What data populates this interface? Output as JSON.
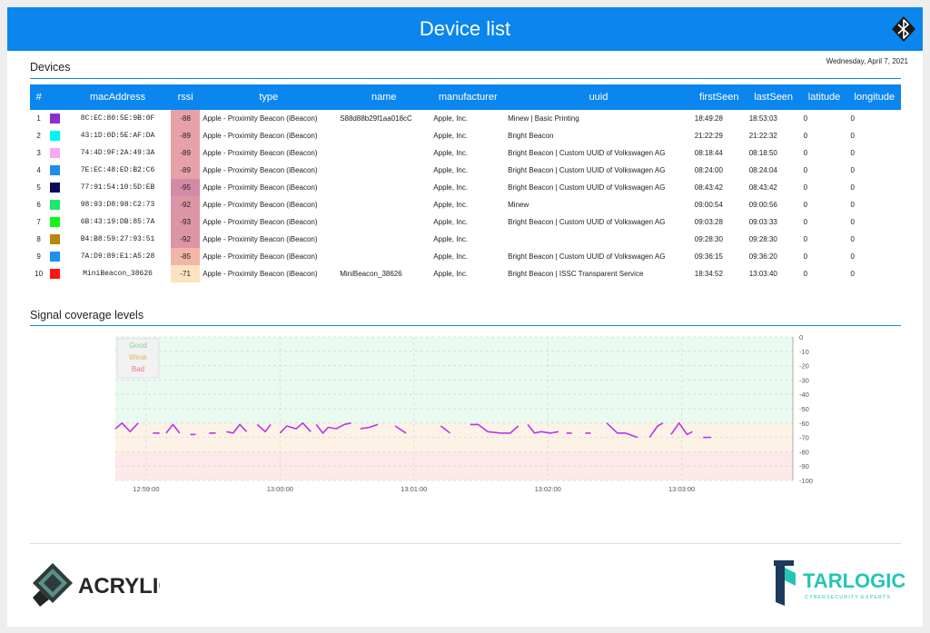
{
  "header": {
    "title": "Device list"
  },
  "devices": {
    "title": "Devices",
    "date": "Wednesday, April 7, 2021",
    "columns": [
      "#",
      "macAddress",
      "rssi",
      "type",
      "name",
      "manufacturer",
      "uuid",
      "firstSeen",
      "lastSeen",
      "latitude",
      "longitude"
    ],
    "rows": [
      {
        "n": "1",
        "color": "#8b2fd4",
        "mac": "8C:EC:80:5E:9B:0F",
        "rssi": "-88",
        "rssi_color": "#e9a1a8",
        "type": "Apple - Proximity Beacon (iBeacon)",
        "name": "S88d88b29f1aa018cC",
        "manufacturer": "Apple, Inc.",
        "uuid": "Minew | Basic Printing",
        "first": "18:49:28",
        "last": "18:53:03",
        "lat": "0",
        "lon": "0"
      },
      {
        "n": "2",
        "color": "#00f5f5",
        "mac": "43:1D:0D:5E:AF:DA",
        "rssi": "-89",
        "rssi_color": "#e9a1a8",
        "type": "Apple - Proximity Beacon (iBeacon)",
        "name": "",
        "manufacturer": "Apple, Inc.",
        "uuid": "Bright Beacon",
        "first": "21:22:29",
        "last": "21:22:32",
        "lat": "0",
        "lon": "0"
      },
      {
        "n": "3",
        "color": "#f7a8f0",
        "mac": "74:4D:9F:2A:49:3A",
        "rssi": "-89",
        "rssi_color": "#e9a1a8",
        "type": "Apple - Proximity Beacon (iBeacon)",
        "name": "",
        "manufacturer": "Apple, Inc.",
        "uuid": "Bright Beacon | Custom UUID of Volkswagen AG",
        "first": "08:18:44",
        "last": "08:18:50",
        "lat": "0",
        "lon": "0"
      },
      {
        "n": "4",
        "color": "#1e8bf0",
        "mac": "7E:EC:48:ED:B2:C6",
        "rssi": "-89",
        "rssi_color": "#e9a1a8",
        "type": "Apple - Proximity Beacon (iBeacon)",
        "name": "",
        "manufacturer": "Apple, Inc.",
        "uuid": "Bright Beacon | Custom UUID of Volkswagen AG",
        "first": "08:24:00",
        "last": "08:24:04",
        "lat": "0",
        "lon": "0"
      },
      {
        "n": "5",
        "color": "#0a0a5a",
        "mac": "77:91:54:10:5D:EB",
        "rssi": "-95",
        "rssi_color": "#d28aa8",
        "type": "Apple - Proximity Beacon (iBeacon)",
        "name": "",
        "manufacturer": "Apple, Inc.",
        "uuid": "Bright Beacon | Custom UUID of Volkswagen AG",
        "first": "08:43:42",
        "last": "08:43:42",
        "lat": "0",
        "lon": "0"
      },
      {
        "n": "6",
        "color": "#17ea6f",
        "mac": "98:93:D8:98:C2:73",
        "rssi": "-92",
        "rssi_color": "#dc95a5",
        "type": "Apple - Proximity Beacon (iBeacon)",
        "name": "",
        "manufacturer": "Apple, Inc.",
        "uuid": "Minew",
        "first": "09:00:54",
        "last": "09:00:56",
        "lat": "0",
        "lon": "0"
      },
      {
        "n": "7",
        "color": "#14f514",
        "mac": "6B:43:19:DB:85:7A",
        "rssi": "-93",
        "rssi_color": "#dc95a5",
        "type": "Apple - Proximity Beacon (iBeacon)",
        "name": "",
        "manufacturer": "Apple, Inc.",
        "uuid": "Bright Beacon | Custom UUID of Volkswagen AG",
        "first": "09:03:28",
        "last": "09:03:33",
        "lat": "0",
        "lon": "0"
      },
      {
        "n": "8",
        "color": "#b8860b",
        "mac": "B4:B8:59:27:93:51",
        "rssi": "-92",
        "rssi_color": "#dc95a5",
        "type": "Apple - Proximity Beacon (iBeacon)",
        "name": "",
        "manufacturer": "Apple, Inc.",
        "uuid": "",
        "first": "09:28:30",
        "last": "09:28:30",
        "lat": "0",
        "lon": "0"
      },
      {
        "n": "9",
        "color": "#1e90f0",
        "mac": "7A:D9:89:E1:A5:28",
        "rssi": "-85",
        "rssi_color": "#f2b5a8",
        "type": "Apple - Proximity Beacon (iBeacon)",
        "name": "",
        "manufacturer": "Apple, Inc.",
        "uuid": "Bright Beacon | Custom UUID of Volkswagen AG",
        "first": "09:36:15",
        "last": "09:36:20",
        "lat": "0",
        "lon": "0"
      },
      {
        "n": "10",
        "color": "#ff1414",
        "mac": "MiniBeacon_38626",
        "rssi": "-71",
        "rssi_color": "#fbe3bf",
        "type": "Apple - Proximity Beacon (iBeacon)",
        "name": "MiniBeacon_38626",
        "manufacturer": "Apple, Inc.",
        "uuid": "Bright Beacon | ISSC Transparent Service",
        "first": "18:34:52",
        "last": "13:03:40",
        "lat": "0",
        "lon": "0"
      }
    ]
  },
  "signal": {
    "title": "Signal coverage levels",
    "legend": [
      {
        "label": "Good",
        "color": "#7fd08f"
      },
      {
        "label": "Weak",
        "color": "#e4b866"
      },
      {
        "label": "Bad",
        "color": "#e67a7a"
      }
    ]
  },
  "chart_data": {
    "type": "line",
    "title": "Signal coverage levels",
    "x_ticks": [
      "12:59:00",
      "13:00:00",
      "13:01:00",
      "13:02:00",
      "13:03:00"
    ],
    "x_tick_minutes": [
      0,
      1,
      2,
      3,
      4
    ],
    "xlim_minutes": [
      -0.23,
      4.83
    ],
    "ylim": [
      -100,
      0
    ],
    "y_ticks": [
      0,
      -10,
      -20,
      -30,
      -40,
      -50,
      -60,
      -70,
      -80,
      -90,
      -100
    ],
    "bands": [
      {
        "label": "Good",
        "from": 0,
        "to": -60,
        "color": "#e9faf0"
      },
      {
        "label": "Weak",
        "from": -60,
        "to": -80,
        "color": "#fdf2e6"
      },
      {
        "label": "Bad",
        "from": -80,
        "to": -100,
        "color": "#fde9e9"
      }
    ],
    "grid": true,
    "legend_position": "top-left",
    "series": [
      {
        "color": "#b437e8",
        "segments": [
          [
            [
              -0.23,
              -64
            ],
            [
              -0.18,
              -60
            ],
            [
              -0.12,
              -66
            ],
            [
              -0.06,
              -60
            ]
          ],
          [
            [
              0.05,
              -67
            ],
            [
              0.1,
              -67
            ]
          ],
          [
            [
              0.15,
              -67
            ],
            [
              0.2,
              -61
            ],
            [
              0.25,
              -67
            ]
          ],
          [
            [
              0.33,
              -68
            ],
            [
              0.37,
              -68
            ]
          ],
          [
            [
              0.47,
              -67
            ],
            [
              0.52,
              -67
            ]
          ],
          [
            [
              0.6,
              -66
            ],
            [
              0.65,
              -67
            ],
            [
              0.7,
              -61
            ],
            [
              0.75,
              -66
            ]
          ],
          [
            [
              0.83,
              -61
            ],
            [
              0.89,
              -66
            ],
            [
              0.93,
              -61
            ]
          ],
          [
            [
              1.0,
              -67
            ],
            [
              1.05,
              -62
            ],
            [
              1.12,
              -64
            ],
            [
              1.17,
              -60
            ],
            [
              1.23,
              -66
            ]
          ],
          [
            [
              1.27,
              -61
            ],
            [
              1.32,
              -67
            ],
            [
              1.36,
              -63
            ],
            [
              1.42,
              -64
            ],
            [
              1.48,
              -61
            ],
            [
              1.53,
              -60
            ]
          ],
          [
            [
              1.6,
              -64
            ],
            [
              1.67,
              -63
            ],
            [
              1.73,
              -61
            ]
          ],
          [
            [
              1.86,
              -62
            ],
            [
              1.94,
              -67
            ]
          ],
          [
            [
              2.2,
              -62
            ],
            [
              2.27,
              -67
            ]
          ],
          [
            [
              2.42,
              -61
            ],
            [
              2.48,
              -61
            ],
            [
              2.55,
              -66
            ],
            [
              2.65,
              -67
            ],
            [
              2.72,
              -67
            ],
            [
              2.78,
              -62
            ]
          ],
          [
            [
              2.85,
              -61
            ],
            [
              2.9,
              -67
            ],
            [
              2.95,
              -66
            ],
            [
              3.02,
              -67
            ],
            [
              3.08,
              -66
            ]
          ],
          [
            [
              3.14,
              -67
            ],
            [
              3.18,
              -67
            ]
          ],
          [
            [
              3.28,
              -67
            ],
            [
              3.32,
              -67
            ]
          ],
          [
            [
              3.44,
              -60
            ],
            [
              3.52,
              -67
            ],
            [
              3.58,
              -67
            ],
            [
              3.67,
              -70
            ]
          ],
          [
            [
              3.76,
              -70
            ],
            [
              3.82,
              -62
            ],
            [
              3.86,
              -60
            ]
          ],
          [
            [
              3.92,
              -68
            ],
            [
              3.98,
              -60
            ],
            [
              4.04,
              -68
            ],
            [
              4.08,
              -66
            ]
          ],
          [
            [
              4.16,
              -70
            ],
            [
              4.22,
              -70
            ]
          ]
        ]
      }
    ]
  },
  "footer": {
    "acrylic_logo": "ACRYLIC",
    "tarlogic_logo": "TARLOGIC",
    "tarlogic_sub": "CYBERSECURITY EXPERTS"
  }
}
